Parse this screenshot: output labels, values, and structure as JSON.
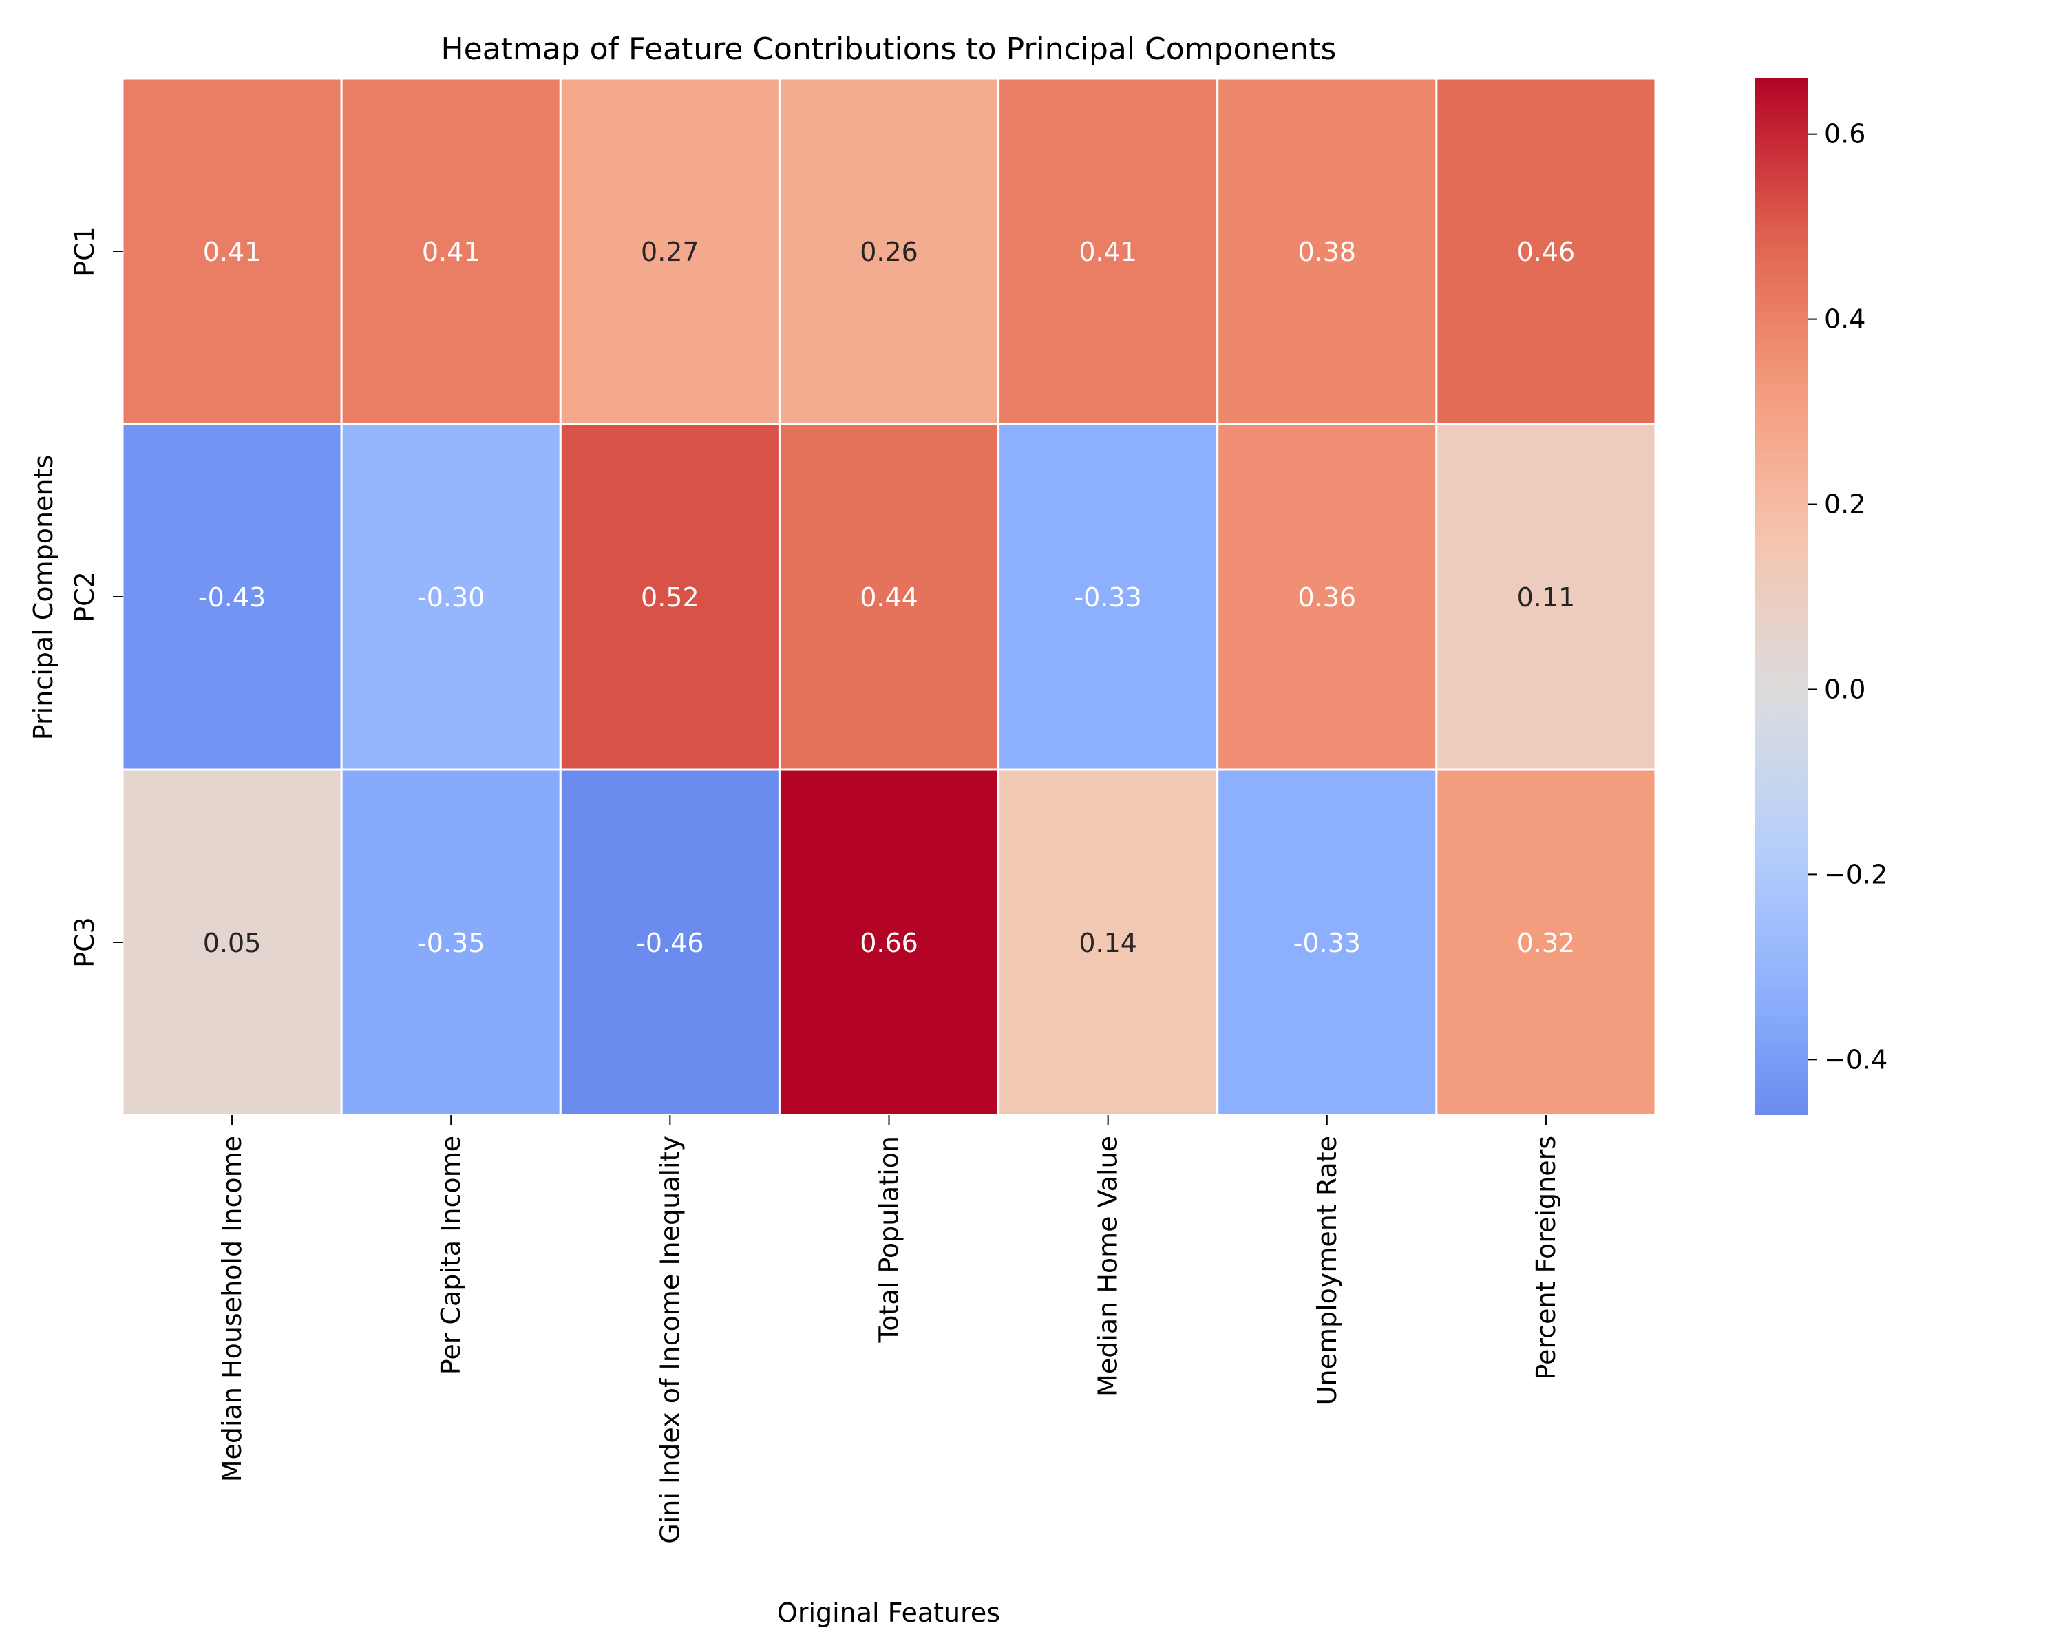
{
  "chart_data": {
    "type": "heatmap",
    "title": "Heatmap of Feature Contributions to Principal Components",
    "xlabel": "Original Features",
    "ylabel": "Principal Components",
    "columns": [
      "Median Household Income",
      "Per Capita Income",
      "Gini Index of Income Inequality",
      "Total Population",
      "Median Home Value",
      "Unemployment Rate",
      "Percent Foreigners"
    ],
    "rows": [
      "PC1",
      "PC2",
      "PC3"
    ],
    "values": [
      [
        0.41,
        0.41,
        0.27,
        0.26,
        0.41,
        0.38,
        0.46
      ],
      [
        -0.43,
        -0.3,
        0.52,
        0.44,
        -0.33,
        0.36,
        0.11
      ],
      [
        0.05,
        -0.35,
        -0.46,
        0.66,
        0.14,
        -0.33,
        0.32
      ]
    ],
    "value_labels": [
      [
        "0.41",
        "0.41",
        "0.27",
        "0.26",
        "0.41",
        "0.38",
        "0.46"
      ],
      [
        "-0.43",
        "-0.30",
        "0.52",
        "0.44",
        "-0.33",
        "0.36",
        "0.11"
      ],
      [
        "0.05",
        "-0.35",
        "-0.46",
        "0.66",
        "0.14",
        "-0.33",
        "0.32"
      ]
    ],
    "colormap": "coolwarm",
    "color_range": [
      -0.46,
      0.66
    ],
    "colorbar_ticks": [
      -0.4,
      -0.2,
      0.0,
      0.2,
      0.4,
      0.6
    ],
    "colorbar_tick_labels": [
      "−0.4",
      "−0.2",
      "0.0",
      "0.2",
      "0.4",
      "0.6"
    ],
    "cell_border_color": "#ffffff",
    "grid": false
  }
}
